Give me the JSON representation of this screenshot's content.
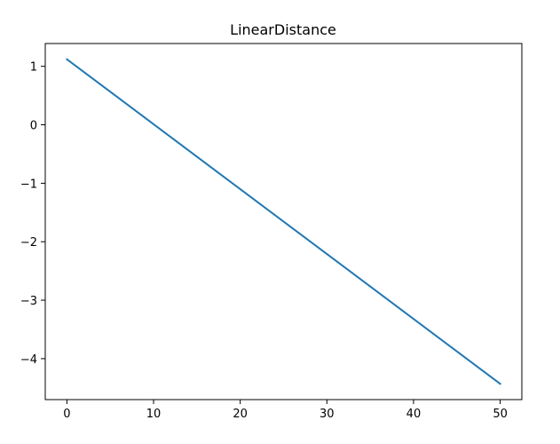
{
  "chart_data": {
    "type": "line",
    "title": "LinearDistance",
    "xlabel": "",
    "ylabel": "",
    "x": [
      0,
      50
    ],
    "series": [
      {
        "values": [
          1.12,
          -4.43
        ],
        "color": "#1f77b4"
      }
    ],
    "xlim": [
      -2.5,
      52.5
    ],
    "ylim": [
      -4.7,
      1.39
    ],
    "xticks": [
      0,
      10,
      20,
      30,
      40,
      50
    ],
    "xtick_labels": [
      "0",
      "10",
      "20",
      "30",
      "40",
      "50"
    ],
    "yticks": [
      1,
      0,
      -1,
      -2,
      -3,
      -4
    ],
    "ytick_labels": [
      "1",
      "0",
      "−1",
      "−2",
      "−3",
      "−4"
    ],
    "grid": false,
    "legend": "none"
  }
}
